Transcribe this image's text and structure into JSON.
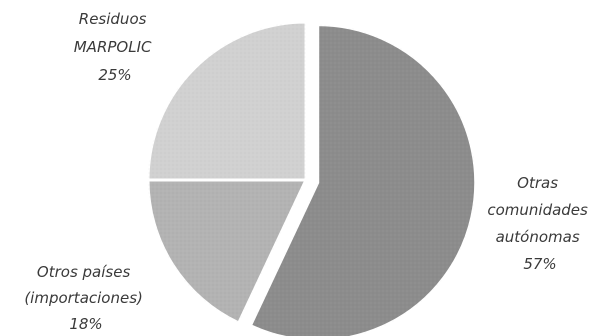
{
  "chart_data": {
    "type": "pie",
    "start_angle_deg": 0,
    "direction": "clockwise",
    "slices": [
      {
        "label_lines": [
          "Otras",
          "comunidades",
          "autónomas"
        ],
        "percent_label": "57%",
        "value": 57,
        "color": "#8c8c8c",
        "exploded": true
      },
      {
        "label_lines": [
          "Otros países",
          "(importaciones)"
        ],
        "percent_label": "18%",
        "value": 18,
        "color": "#b3b3b3",
        "exploded": false
      },
      {
        "label_lines": [
          "Residuos",
          "MARPOLIC"
        ],
        "percent_label": "25%",
        "value": 25,
        "color": "#d1d1d1",
        "exploded": false
      }
    ],
    "title": "",
    "legend": "none"
  }
}
